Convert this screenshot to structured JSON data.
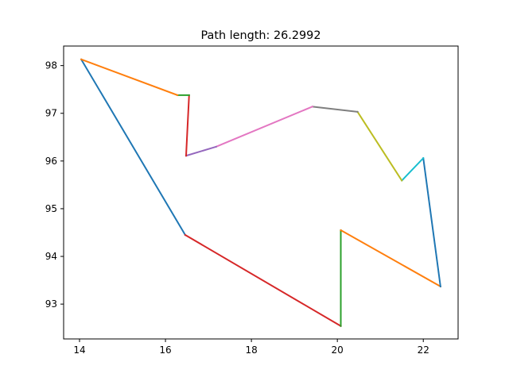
{
  "chart_data": {
    "type": "line",
    "title": "Path length: 26.2992",
    "xlabel": "",
    "ylabel": "",
    "xlim": [
      13.63,
      22.81
    ],
    "ylim": [
      92.27,
      98.41
    ],
    "xticks": [
      14,
      16,
      18,
      20,
      22
    ],
    "yticks": [
      93,
      94,
      95,
      96,
      97,
      98
    ],
    "grid": false,
    "legend": "none",
    "points": [
      {
        "x": 14.04,
        "y": 98.13
      },
      {
        "x": 16.46,
        "y": 94.45
      },
      {
        "x": 20.08,
        "y": 92.54
      },
      {
        "x": 20.08,
        "y": 94.55
      },
      {
        "x": 22.4,
        "y": 93.37
      },
      {
        "x": 22.0,
        "y": 96.06
      },
      {
        "x": 21.5,
        "y": 95.59
      },
      {
        "x": 20.47,
        "y": 97.03
      },
      {
        "x": 19.42,
        "y": 97.14
      },
      {
        "x": 17.18,
        "y": 96.3
      },
      {
        "x": 16.48,
        "y": 96.11
      },
      {
        "x": 16.55,
        "y": 97.38
      },
      {
        "x": 16.28,
        "y": 97.38
      },
      {
        "x": 14.04,
        "y": 98.13
      }
    ],
    "segment_colors": [
      "#1f77b4",
      "#d62728",
      "#2ca02c",
      "#ff7f0e",
      "#1f77b4",
      "#17becf",
      "#bcbd22",
      "#7f7f7f",
      "#e377c2",
      "#9467bd",
      "#d62728",
      "#2ca02c",
      "#ff7f0e"
    ]
  }
}
